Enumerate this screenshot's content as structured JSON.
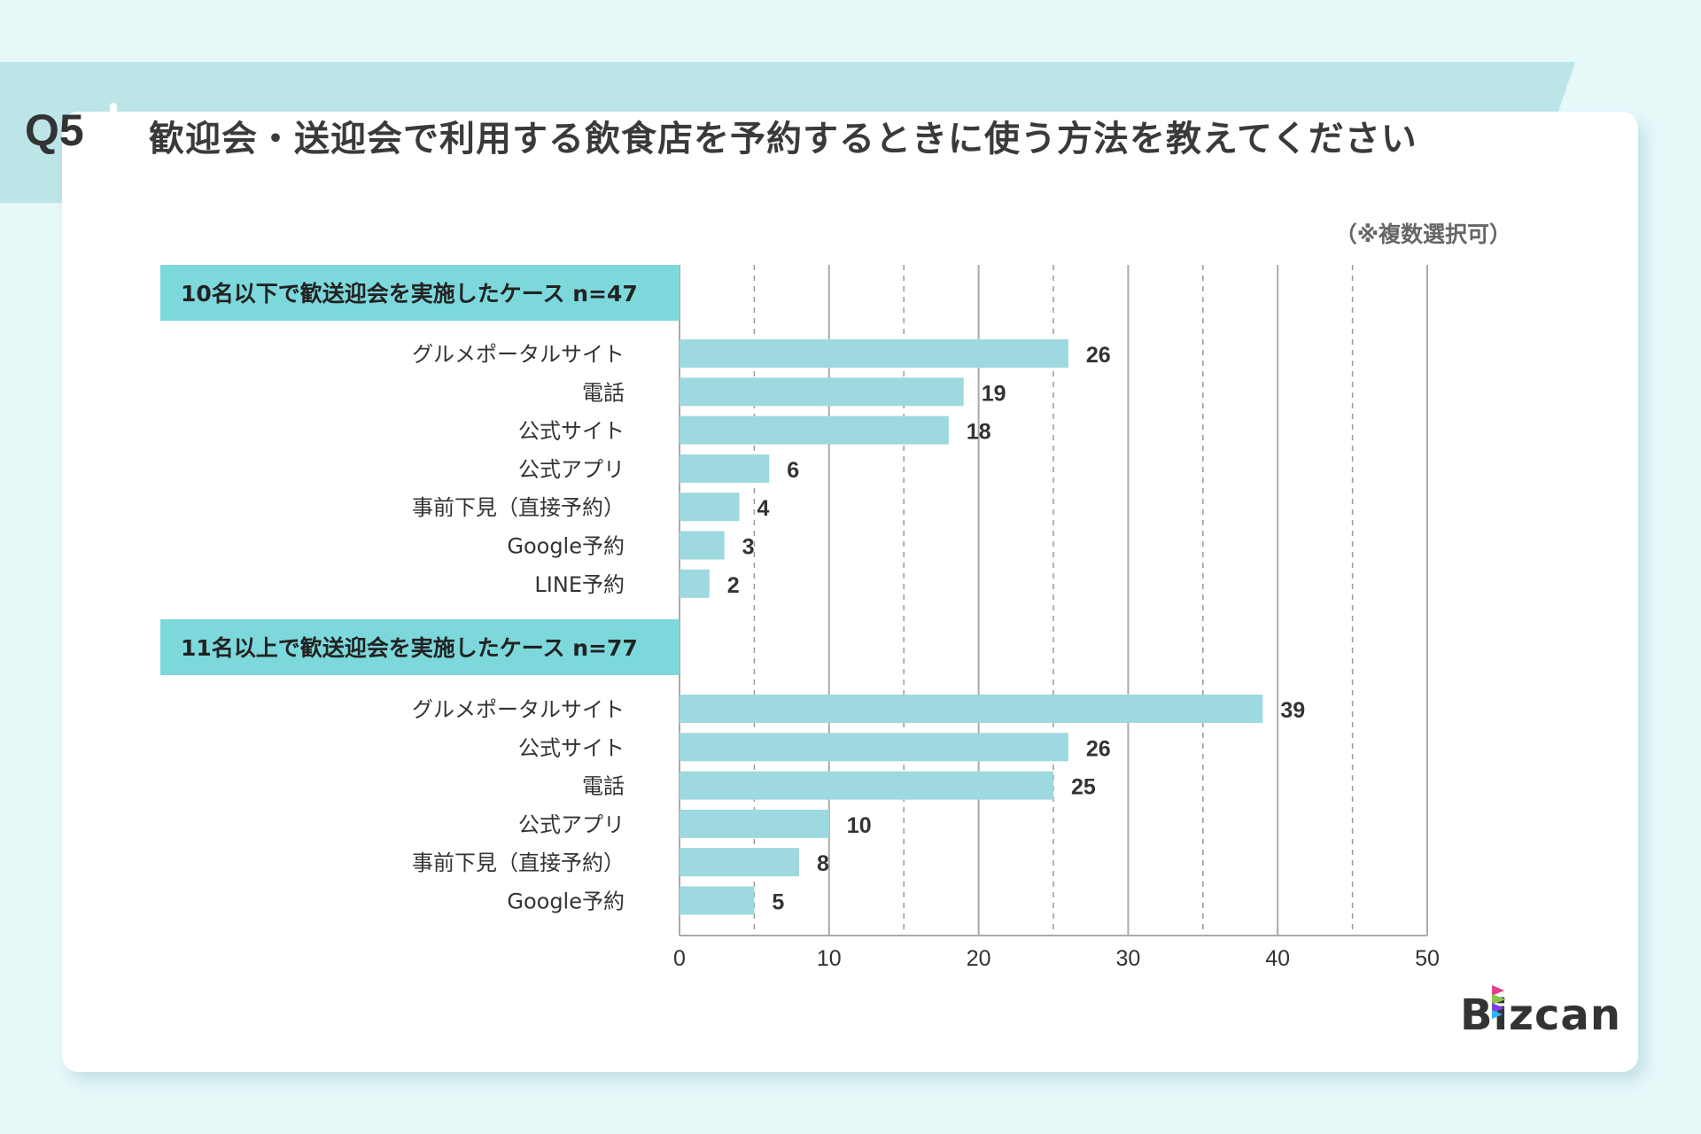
{
  "header": {
    "question_no": "Q5",
    "title": "歓迎会・送迎会で利用する飲食店を予約するときに使う方法を教えてください",
    "note": "（※複数選択可）"
  },
  "logo": "Bizcan",
  "colors": {
    "background": "#e7f8f9",
    "banner": "#bce5e8",
    "group_header": "#7dd8dc",
    "bar": "#9dd9df"
  },
  "chart_data": {
    "type": "bar",
    "orientation": "horizontal",
    "xlim": [
      0,
      50
    ],
    "xticks": [
      0,
      10,
      20,
      30,
      40,
      50
    ],
    "grid": "vertical, solid at 10s, dashed at 5s",
    "groups": [
      {
        "label": "10名以下で歓送迎会を実施したケース n=47",
        "categories": [
          "グルメポータルサイト",
          "電話",
          "公式サイト",
          "公式アプリ",
          "事前下見（直接予約）",
          "Google予約",
          "LINE予約"
        ],
        "values": [
          26,
          19,
          18,
          6,
          4,
          3,
          2
        ]
      },
      {
        "label": "11名以上で歓送迎会を実施したケース n=77",
        "categories": [
          "グルメポータルサイト",
          "公式サイト",
          "電話",
          "公式アプリ",
          "事前下見（直接予約）",
          "Google予約"
        ],
        "values": [
          39,
          26,
          25,
          10,
          8,
          5
        ]
      }
    ]
  }
}
